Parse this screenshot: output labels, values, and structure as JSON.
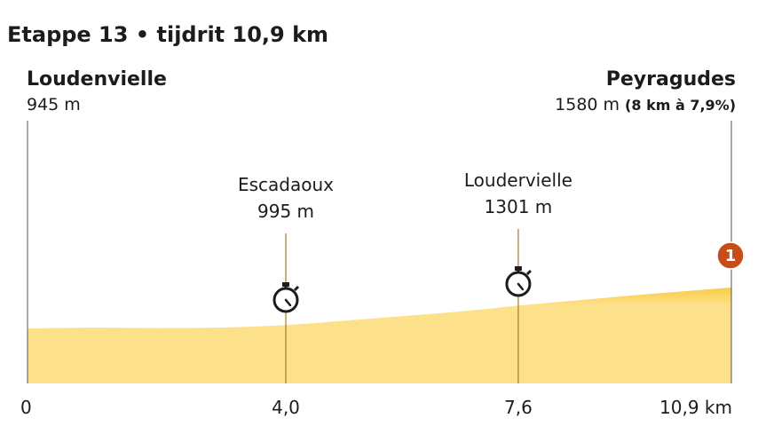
{
  "title": "Etappe 13 • tijdrit 10,9 km",
  "start": {
    "name": "Loudenvielle",
    "altitude": "945  m"
  },
  "finish": {
    "name": "Peyragudes",
    "altitude": "1580 m",
    "climb": "(8 km à 7,9%)"
  },
  "checkpoints": [
    {
      "name": "Escadaoux",
      "altitude": "995 m",
      "km": 4.0
    },
    {
      "name": "Loudervielle",
      "altitude": "1301 m",
      "km": 7.6
    }
  ],
  "climb_marker": "1",
  "x_tick_labels": [
    "0",
    "4,0",
    "7,6",
    "10,9 km"
  ],
  "colors": {
    "fill": "#fde08a",
    "fill_top": "#f8cb45",
    "line": "#a37e1f",
    "frame": "#555555",
    "marker": "#c84c18"
  },
  "icons": {
    "checkpoint": "stopwatch-icon"
  },
  "chart_data": {
    "type": "area",
    "x_unit": "km",
    "y_unit": "m",
    "xlim": [
      0,
      10.9
    ],
    "x_ticks": [
      0,
      4.0,
      7.6,
      10.9
    ],
    "x": [
      0,
      0.5,
      1.0,
      1.5,
      2.0,
      2.5,
      3.0,
      3.5,
      4.0,
      4.5,
      5.0,
      5.5,
      6.0,
      6.5,
      7.0,
      7.6,
      8.0,
      8.5,
      9.0,
      9.5,
      10.0,
      10.5,
      10.9
    ],
    "y": [
      945,
      950,
      958,
      953,
      949,
      950,
      957,
      972,
      995,
      1030,
      1070,
      1110,
      1150,
      1190,
      1235,
      1301,
      1335,
      1380,
      1425,
      1470,
      1510,
      1550,
      1580
    ],
    "grid": false,
    "legend": "none"
  }
}
